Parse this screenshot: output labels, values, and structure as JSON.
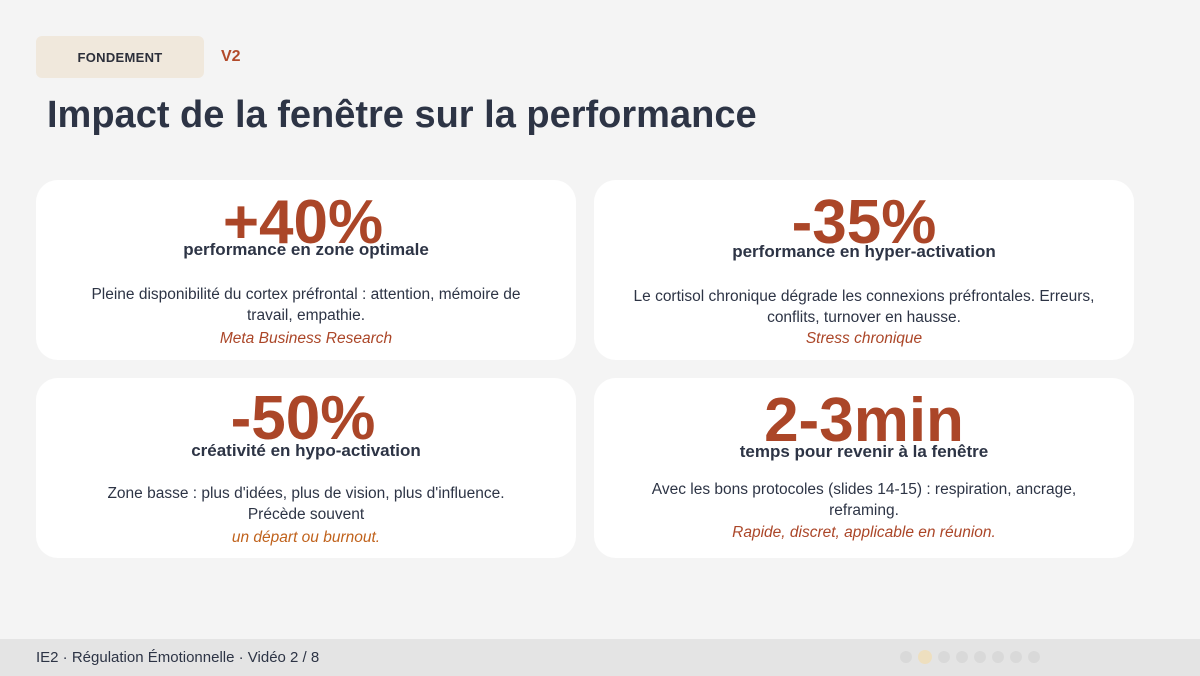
{
  "header": {
    "tag": "FONDEMENT",
    "version": "V2",
    "title": "Impact de la fenêtre sur la performance"
  },
  "cards": [
    {
      "stat": "+40%",
      "subtitle": "performance en zone optimale",
      "description": "Pleine disponibilité du cortex préfrontal : attention, mémoire de travail, empathie.",
      "source": "Meta Business Research"
    },
    {
      "stat": "-35%",
      "subtitle": "performance en hyper-activation",
      "description": "Le cortisol chronique dégrade les connexions préfrontales. Erreurs, conflits, turnover en hausse.",
      "source": "Stress chronique"
    },
    {
      "stat": "-50%",
      "subtitle": "créativité en hypo-activation",
      "description": "Zone basse : plus d'idées, plus de vision, plus d'influence. Précède souvent",
      "source": "un départ ou burnout."
    },
    {
      "stat": "2-3min",
      "subtitle": "temps pour revenir à la fenêtre",
      "description": "Avec les bons protocoles (slides 14-15) : respiration, ancrage, reframing.",
      "source": "Rapide, discret, applicable en réunion."
    }
  ],
  "footer": {
    "text": "IE2 · Régulation Émotionnelle · Vidéo 2 / 8",
    "pagination": {
      "total": 8,
      "active": 2
    }
  },
  "colors": {
    "accent": "#ab4628",
    "title": "#2d3445",
    "tag_bg": "#f0e8dc"
  }
}
